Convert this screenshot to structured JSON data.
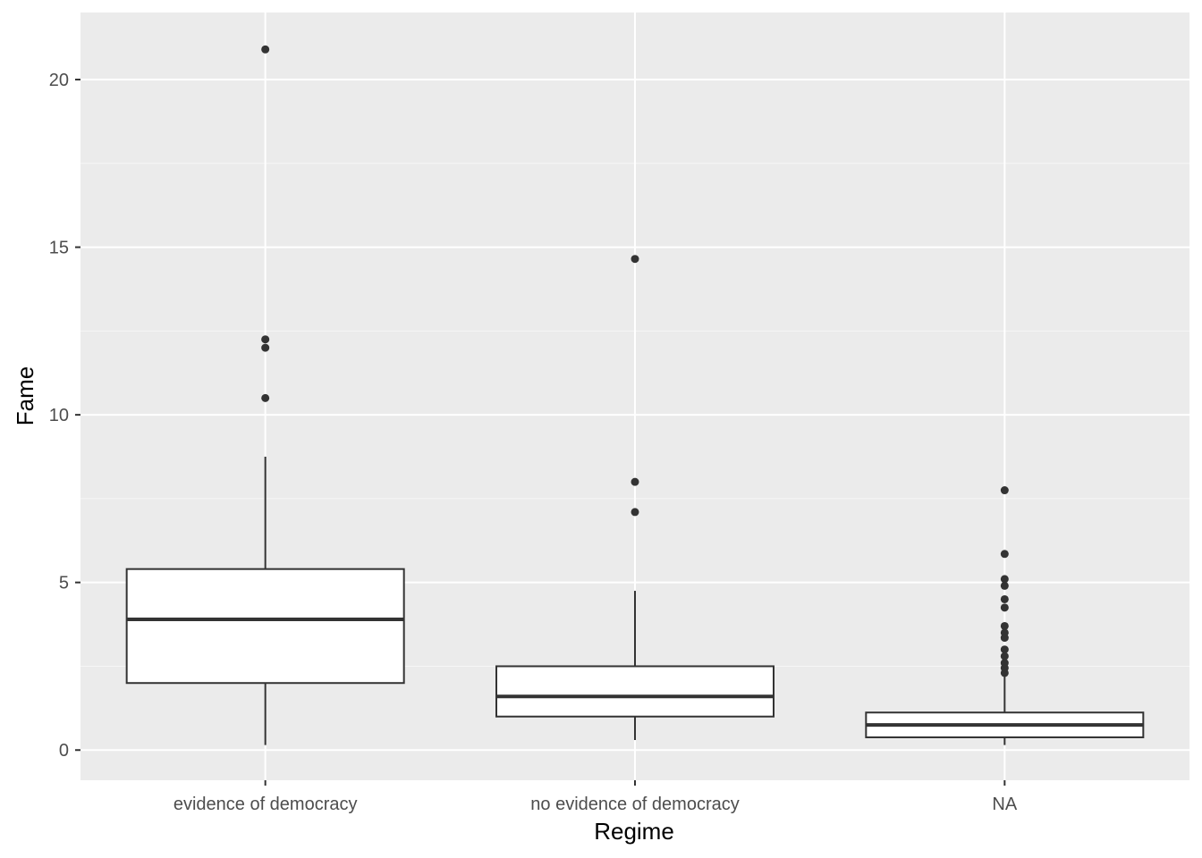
{
  "chart_data": {
    "type": "boxplot",
    "title": "",
    "xlabel": "Regime",
    "ylabel": "Fame",
    "ylim": [
      -0.9,
      22.0
    ],
    "y_ticks": [
      0,
      5,
      10,
      15,
      20
    ],
    "y_tick_labels": [
      "0",
      "5",
      "10",
      "15",
      "20"
    ],
    "categories": [
      "evidence of democracy",
      "no evidence of democracy",
      "NA"
    ],
    "grid": true,
    "legend": "none",
    "colors": {
      "panel_background": "#ebebeb",
      "grid_major": "#ffffff",
      "grid_minor": "#f5f5f5",
      "box_fill": "#ffffff",
      "box_line": "#333333",
      "outlier": "#333333"
    },
    "boxes": [
      {
        "category": "evidence of democracy",
        "whisker_low": 0.15,
        "q1": 2.0,
        "median": 3.9,
        "q3": 5.4,
        "whisker_high": 8.75,
        "outliers": [
          10.5,
          12.0,
          12.25,
          20.9
        ]
      },
      {
        "category": "no evidence of democracy",
        "whisker_low": 0.3,
        "q1": 1.0,
        "median": 1.6,
        "q3": 2.5,
        "whisker_high": 4.75,
        "outliers": [
          7.1,
          8.0,
          14.65
        ]
      },
      {
        "category": "NA",
        "whisker_low": 0.15,
        "q1": 0.38,
        "median": 0.75,
        "q3": 1.12,
        "whisker_high": 2.2,
        "outliers": [
          2.3,
          2.45,
          2.6,
          2.8,
          3.0,
          3.35,
          3.5,
          3.7,
          4.25,
          4.5,
          4.9,
          5.1,
          5.85,
          7.75
        ]
      }
    ]
  }
}
